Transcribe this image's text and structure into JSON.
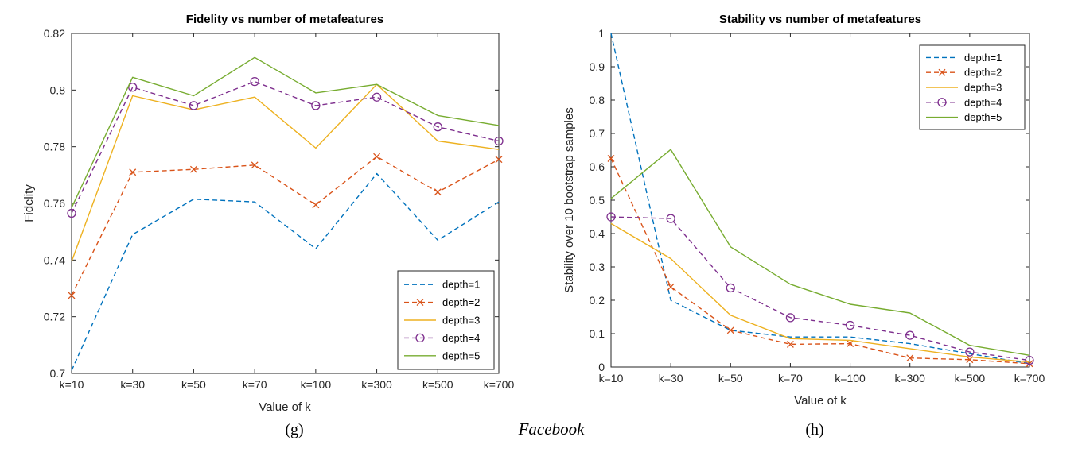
{
  "chart_data": [
    {
      "type": "line",
      "title": "Fidelity vs number of metafeatures",
      "xlabel": "Value of k",
      "ylabel": "Fidelity",
      "categories": [
        "k=10",
        "k=30",
        "k=50",
        "k=70",
        "k=100",
        "k=300",
        "k=500",
        "k=700"
      ],
      "ylim": [
        0.7,
        0.82
      ],
      "yticks": [
        "0.7",
        "0.72",
        "0.74",
        "0.76",
        "0.78",
        "0.8",
        "0.82"
      ],
      "legend_position": "bottom-right",
      "series": [
        {
          "name": "depth=1",
          "values": [
            0.701,
            0.749,
            0.7615,
            0.7605,
            0.744,
            0.7705,
            0.747,
            0.7605
          ]
        },
        {
          "name": "depth=2",
          "values": [
            0.7275,
            0.771,
            0.772,
            0.7735,
            0.7595,
            0.7765,
            0.764,
            0.7755
          ]
        },
        {
          "name": "depth=3",
          "values": [
            0.7395,
            0.798,
            0.793,
            0.7975,
            0.7795,
            0.802,
            0.782,
            0.779
          ]
        },
        {
          "name": "depth=4",
          "values": [
            0.7565,
            0.801,
            0.7945,
            0.803,
            0.7945,
            0.7975,
            0.787,
            0.782
          ]
        },
        {
          "name": "depth=5",
          "values": [
            0.7585,
            0.8045,
            0.798,
            0.8115,
            0.799,
            0.802,
            0.791,
            0.7875
          ]
        }
      ]
    },
    {
      "type": "line",
      "title": "Stability vs number of metafeatures",
      "xlabel": "Value of k",
      "ylabel": "Stability over 10 bootstrap samples",
      "categories": [
        "k=10",
        "k=30",
        "k=50",
        "k=70",
        "k=100",
        "k=300",
        "k=500",
        "k=700"
      ],
      "ylim": [
        0,
        1
      ],
      "yticks": [
        "0",
        "0.1",
        "0.2",
        "0.3",
        "0.4",
        "0.5",
        "0.6",
        "0.7",
        "0.8",
        "0.9",
        "1"
      ],
      "legend_position": "top-right",
      "series": [
        {
          "name": "depth=1",
          "values": [
            1.0,
            0.2,
            0.11,
            0.09,
            0.09,
            0.07,
            0.04,
            0.01
          ]
        },
        {
          "name": "depth=2",
          "values": [
            0.625,
            0.24,
            0.11,
            0.068,
            0.07,
            0.027,
            0.022,
            0.01
          ]
        },
        {
          "name": "depth=3",
          "values": [
            0.43,
            0.325,
            0.155,
            0.085,
            0.08,
            0.055,
            0.03,
            0.015
          ]
        },
        {
          "name": "depth=4",
          "values": [
            0.45,
            0.445,
            0.237,
            0.148,
            0.125,
            0.095,
            0.045,
            0.02
          ]
        },
        {
          "name": "depth=5",
          "values": [
            0.505,
            0.652,
            0.36,
            0.248,
            0.188,
            0.162,
            0.065,
            0.035
          ]
        }
      ]
    }
  ],
  "series_colors": [
    "#0072BD",
    "#D95319",
    "#EDB120",
    "#7E2F8E",
    "#77AC30"
  ],
  "captions": {
    "left": "(g)",
    "center": "Facebook",
    "right": "(h)"
  }
}
